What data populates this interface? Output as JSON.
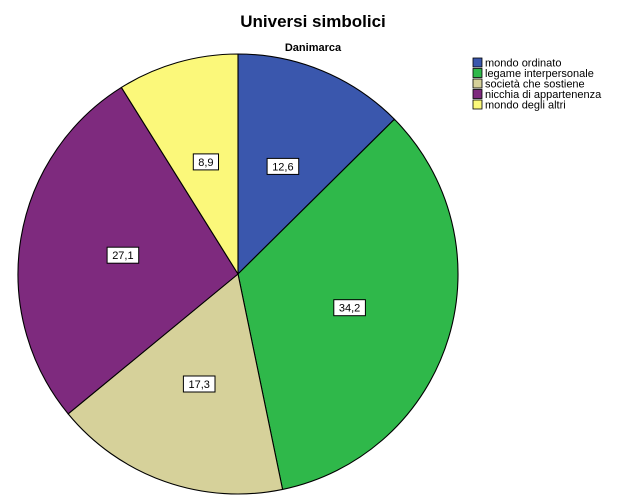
{
  "chart_data": {
    "type": "pie",
    "title": "Universi simbolici",
    "subtitle": "Danimarca",
    "categories": [
      "mondo ordinato",
      "legame interpersonale",
      "società che sostiene",
      "nicchia di appartenenza",
      "mondo degli altri"
    ],
    "values": [
      12.6,
      34.2,
      17.3,
      27.1,
      8.9
    ],
    "value_labels": [
      "12,6",
      "34,2",
      "17,3",
      "27,1",
      "8,9"
    ],
    "colors": [
      "#3a57ad",
      "#2fb84a",
      "#d6d19a",
      "#7e2a7e",
      "#fbf87a"
    ],
    "start_angle_deg": 0,
    "direction": "clockwise",
    "legend_position": "top-right"
  }
}
